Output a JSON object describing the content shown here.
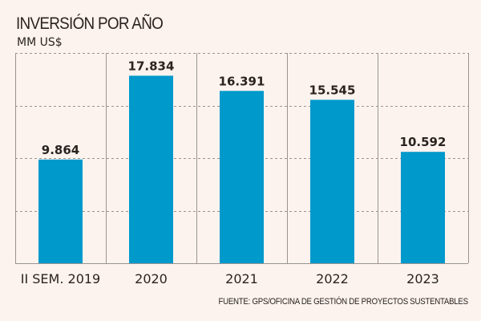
{
  "header": {
    "title": "INVERSIÓN POR AÑO",
    "subtitle": "MM US$"
  },
  "footer": {
    "source": "FUENTE: GPS/OFICINA DE GESTIÓN DE PROYECTOS SUSTENTABLES"
  },
  "colors": {
    "bar": "#0099cc",
    "background": "#fcf3ee",
    "grid": "#9a9491",
    "text": "#2a2320"
  },
  "chart_data": {
    "type": "bar",
    "title": "INVERSIÓN POR AÑO",
    "subtitle": "MM US$",
    "xlabel": "",
    "ylabel": "MM US$",
    "categories": [
      "II SEM. 2019",
      "2020",
      "2021",
      "2022",
      "2023"
    ],
    "values": [
      9.864,
      17.834,
      16.391,
      15.545,
      10.592
    ],
    "value_labels": [
      "9.864",
      "17.834",
      "16.391",
      "15.545",
      "10.592"
    ],
    "ylim": [
      0,
      20
    ],
    "yticks": [
      5,
      10,
      15,
      20
    ],
    "grid": true,
    "legend": "none",
    "source": "FUENTE: GPS/OFICINA DE GESTIÓN DE PROYECTOS SUSTENTABLES"
  }
}
